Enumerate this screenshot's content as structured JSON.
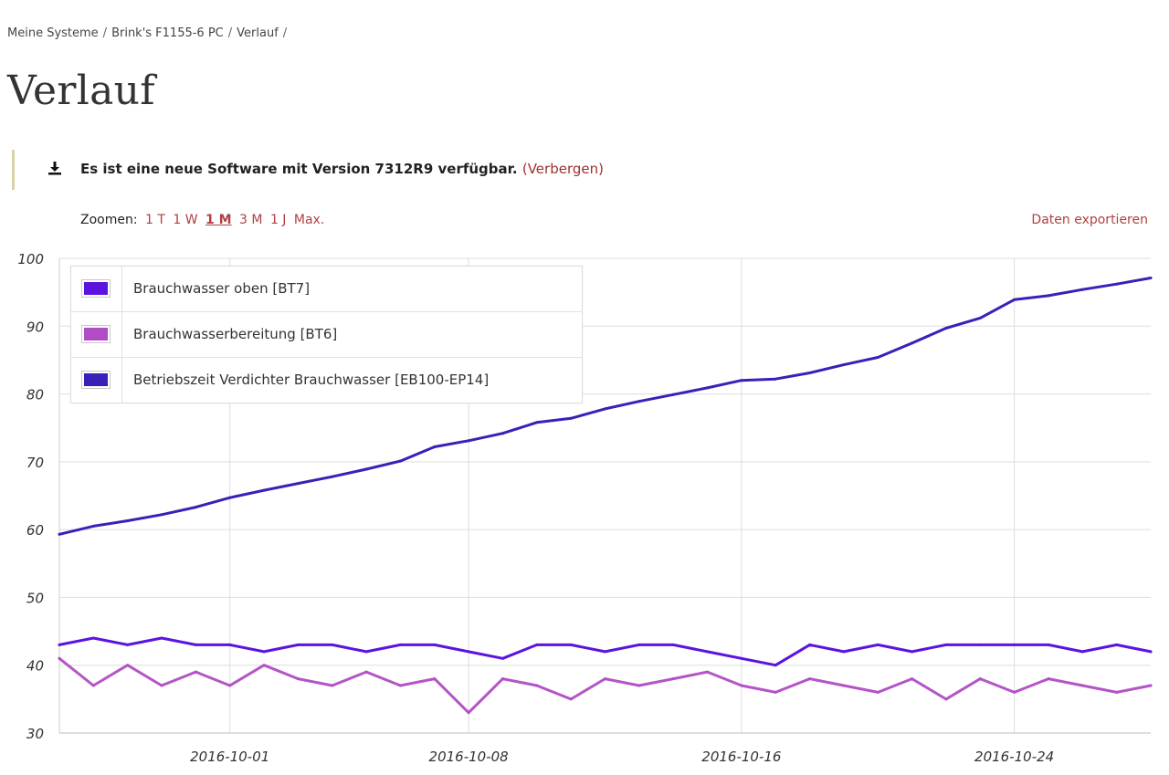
{
  "breadcrumb": {
    "items": [
      "Meine Systeme",
      "Brink's F1155-6 PC",
      "Verlauf"
    ],
    "separator": "/"
  },
  "page_title": "Verlauf",
  "notice": {
    "icon": "download-icon",
    "message": "Es ist eine neue Software mit Version 7312R9 verfügbar.",
    "hide_link": "(Verbergen)"
  },
  "zoom": {
    "label": "Zoomen:",
    "options": [
      "1 T",
      "1 W",
      "1 M",
      "3 M",
      "1 J",
      "Max."
    ],
    "active": "1 M"
  },
  "export_label": "Daten exportieren",
  "colors": {
    "accent_link": "#b04040",
    "series_bt7": "#5b14e0",
    "series_bt6": "#b04cc4",
    "series_eb100": "#3a20b8"
  },
  "chart_data": {
    "type": "line",
    "grid": true,
    "legend_position": "top-left",
    "xlabel": "",
    "ylabel": "",
    "ylim": [
      30,
      100
    ],
    "y_ticks": [
      30,
      40,
      50,
      60,
      70,
      80,
      90,
      100
    ],
    "x_range": [
      "2016-09-26",
      "2016-10-28"
    ],
    "x_ticks": [
      "2016-10-01",
      "2016-10-08",
      "2016-10-16",
      "2016-10-24"
    ],
    "series": [
      {
        "name": "Brauchwasser oben [BT7]",
        "color": "#5b14e0",
        "x": [
          "2016-09-26",
          "2016-09-27",
          "2016-09-28",
          "2016-09-29",
          "2016-09-30",
          "2016-10-01",
          "2016-10-02",
          "2016-10-03",
          "2016-10-04",
          "2016-10-05",
          "2016-10-06",
          "2016-10-07",
          "2016-10-08",
          "2016-10-09",
          "2016-10-10",
          "2016-10-11",
          "2016-10-12",
          "2016-10-13",
          "2016-10-14",
          "2016-10-15",
          "2016-10-16",
          "2016-10-17",
          "2016-10-18",
          "2016-10-19",
          "2016-10-20",
          "2016-10-21",
          "2016-10-22",
          "2016-10-23",
          "2016-10-24",
          "2016-10-25",
          "2016-10-26",
          "2016-10-27",
          "2016-10-28"
        ],
        "y": [
          43,
          44,
          43,
          44,
          43,
          43,
          42,
          43,
          43,
          42,
          43,
          43,
          42,
          41,
          43,
          43,
          42,
          43,
          43,
          42,
          41,
          40,
          43,
          42,
          43,
          42,
          43,
          43,
          43,
          43,
          42,
          43,
          42
        ]
      },
      {
        "name": "Brauchwasserbereitung [BT6]",
        "color": "#b04cc4",
        "x": [
          "2016-09-26",
          "2016-09-27",
          "2016-09-28",
          "2016-09-29",
          "2016-09-30",
          "2016-10-01",
          "2016-10-02",
          "2016-10-03",
          "2016-10-04",
          "2016-10-05",
          "2016-10-06",
          "2016-10-07",
          "2016-10-08",
          "2016-10-09",
          "2016-10-10",
          "2016-10-11",
          "2016-10-12",
          "2016-10-13",
          "2016-10-14",
          "2016-10-15",
          "2016-10-16",
          "2016-10-17",
          "2016-10-18",
          "2016-10-19",
          "2016-10-20",
          "2016-10-21",
          "2016-10-22",
          "2016-10-23",
          "2016-10-24",
          "2016-10-25",
          "2016-10-26",
          "2016-10-27",
          "2016-10-28"
        ],
        "y": [
          41,
          37,
          40,
          37,
          39,
          37,
          40,
          38,
          37,
          39,
          37,
          38,
          33,
          38,
          37,
          35,
          38,
          37,
          38,
          39,
          37,
          36,
          38,
          37,
          36,
          38,
          35,
          38,
          36,
          38,
          37,
          36,
          37
        ]
      },
      {
        "name": "Betriebszeit Verdichter Brauchwasser [EB100-EP14]",
        "color": "#3a20b8",
        "x": [
          "2016-09-26",
          "2016-09-27",
          "2016-09-28",
          "2016-09-29",
          "2016-09-30",
          "2016-10-01",
          "2016-10-02",
          "2016-10-03",
          "2016-10-04",
          "2016-10-05",
          "2016-10-06",
          "2016-10-07",
          "2016-10-08",
          "2016-10-09",
          "2016-10-10",
          "2016-10-11",
          "2016-10-12",
          "2016-10-13",
          "2016-10-14",
          "2016-10-15",
          "2016-10-16",
          "2016-10-17",
          "2016-10-18",
          "2016-10-19",
          "2016-10-20",
          "2016-10-21",
          "2016-10-22",
          "2016-10-23",
          "2016-10-24",
          "2016-10-25",
          "2016-10-26",
          "2016-10-27",
          "2016-10-28"
        ],
        "y": [
          59.3,
          60.5,
          61.3,
          62.2,
          63.3,
          64.7,
          65.8,
          66.8,
          67.8,
          68.9,
          70.1,
          72.2,
          73.1,
          74.2,
          75.8,
          76.4,
          77.8,
          78.9,
          79.9,
          80.9,
          82.0,
          82.2,
          83.1,
          84.3,
          85.4,
          87.5,
          89.7,
          91.2,
          93.9,
          94.5,
          95.4,
          96.2,
          97.1
        ]
      }
    ]
  }
}
